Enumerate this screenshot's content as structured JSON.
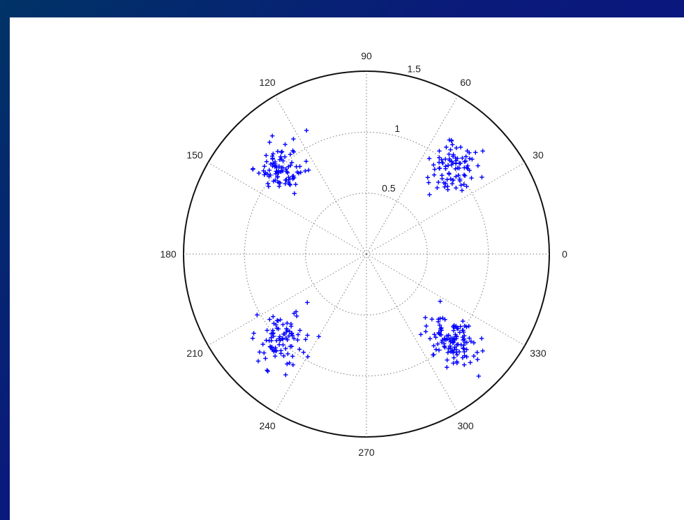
{
  "chart_data": {
    "type": "scatter",
    "coordinate_system": "polar",
    "angle_unit": "degrees",
    "angle_ticks": [
      "0",
      "30",
      "60",
      "90",
      "120",
      "150",
      "180",
      "210",
      "240",
      "270",
      "300",
      "330"
    ],
    "radial_ticks": [
      "0.5",
      "1",
      "1.5"
    ],
    "rlim": [
      0,
      1.5
    ],
    "grid": true,
    "marker": "+",
    "series": [
      {
        "color": "#0000ff",
        "clusters": [
          {
            "center_theta": 45,
            "center_r": 1.0,
            "count": 90
          },
          {
            "center_theta": 135,
            "center_r": 1.0,
            "count": 90
          },
          {
            "center_theta": 225,
            "center_r": 1.0,
            "count": 90
          },
          {
            "center_theta": 315,
            "center_r": 1.0,
            "count": 120
          }
        ]
      }
    ]
  }
}
